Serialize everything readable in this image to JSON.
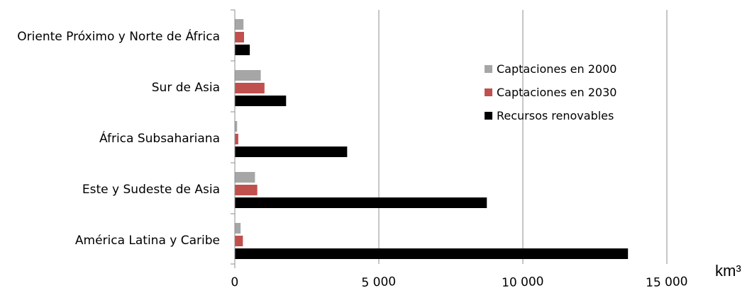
{
  "chart_data": {
    "type": "bar",
    "orientation": "horizontal",
    "categories": [
      "Oriente Próximo y Norte de África",
      "Sur de Asia",
      "África Subsahariana",
      "Este y Sudeste de Asia",
      "América Latina y Caribe"
    ],
    "series": [
      {
        "name": "Captaciones en 2000",
        "values": [
          300,
          900,
          80,
          700,
          200
        ],
        "color": "#a6a6a6"
      },
      {
        "name": "Captaciones en 2030",
        "values": [
          320,
          1030,
          120,
          780,
          280
        ],
        "color": "#c0504d"
      },
      {
        "name": "Recursos renovables",
        "values": [
          520,
          1780,
          3900,
          8750,
          13650
        ],
        "color": "#000000"
      }
    ],
    "xlim": [
      0,
      15000
    ],
    "xticks": [
      0,
      5000,
      10000,
      15000
    ],
    "xtick_labels": [
      "0",
      "5 000",
      "10 000",
      "15 000"
    ],
    "unit_label": "km³",
    "grid": "vertical major gridlines",
    "legend_position": "top-right"
  }
}
